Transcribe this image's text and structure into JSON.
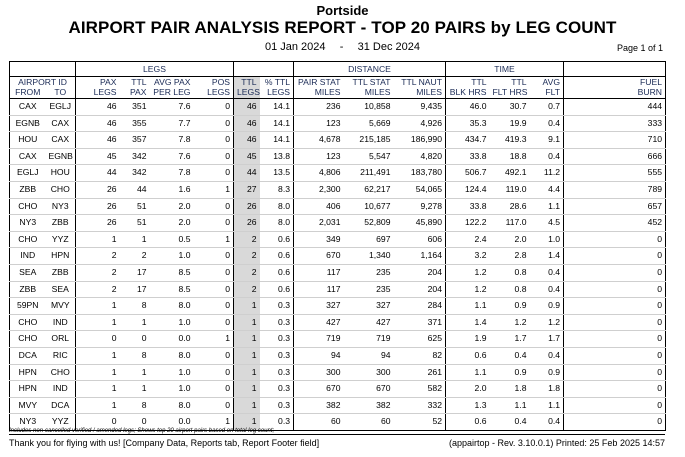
{
  "header": {
    "company": "Portside",
    "title": "AIRPORT PAIR ANALYSIS REPORT - TOP 20 PAIRS by LEG COUNT",
    "date_from": "01 Jan 2024",
    "date_sep": "-",
    "date_to": "31 Dec 2024",
    "page": "Page 1 of 1"
  },
  "groups": {
    "legs": "LEGS",
    "distance": "DISTANCE",
    "time": "TIME"
  },
  "columns": {
    "airport_id": "AIRPORT ID",
    "from": "FROM",
    "to": "TO",
    "pax_legs": [
      "PAX",
      "LEGS"
    ],
    "ttl_pax": [
      "TTL",
      "PAX"
    ],
    "avg_pax": [
      "AVG PAX",
      "PER LEG"
    ],
    "pos_legs": [
      "POS",
      "LEGS"
    ],
    "ttl_legs": [
      "TTL",
      "LEGS"
    ],
    "pct_ttl": [
      "% TTL",
      "LEGS"
    ],
    "pair_stat": [
      "PAIR STAT",
      "MILES"
    ],
    "ttl_stat": [
      "TTL STAT",
      "MILES"
    ],
    "ttl_naut": [
      "TTL NAUT",
      "MILES"
    ],
    "blk_hrs": [
      "TTL",
      "BLK HRS"
    ],
    "flt_hrs": [
      "TTL",
      "FLT HRS"
    ],
    "avg_flt": [
      "AVG",
      "FLT"
    ],
    "fuel_burn": [
      "FUEL",
      "BURN"
    ]
  },
  "rows": [
    {
      "from": "CAX",
      "to": "EGLJ",
      "pax_legs": "46",
      "ttl_pax": "351",
      "avg_pax": "7.6",
      "pos_legs": "0",
      "ttl_legs": "46",
      "pct": "14.1",
      "pair_stat": "236",
      "ttl_stat": "10,858",
      "ttl_naut": "9,435",
      "blk": "46.0",
      "flt": "30.7",
      "avg_flt": "0.7",
      "fuel": "444"
    },
    {
      "from": "EGNB",
      "to": "CAX",
      "pax_legs": "46",
      "ttl_pax": "355",
      "avg_pax": "7.7",
      "pos_legs": "0",
      "ttl_legs": "46",
      "pct": "14.1",
      "pair_stat": "123",
      "ttl_stat": "5,669",
      "ttl_naut": "4,926",
      "blk": "35.3",
      "flt": "19.9",
      "avg_flt": "0.4",
      "fuel": "333"
    },
    {
      "from": "HOU",
      "to": "CAX",
      "pax_legs": "46",
      "ttl_pax": "357",
      "avg_pax": "7.8",
      "pos_legs": "0",
      "ttl_legs": "46",
      "pct": "14.1",
      "pair_stat": "4,678",
      "ttl_stat": "215,185",
      "ttl_naut": "186,990",
      "blk": "434.7",
      "flt": "419.3",
      "avg_flt": "9.1",
      "fuel": "710"
    },
    {
      "from": "CAX",
      "to": "EGNB",
      "pax_legs": "45",
      "ttl_pax": "342",
      "avg_pax": "7.6",
      "pos_legs": "0",
      "ttl_legs": "45",
      "pct": "13.8",
      "pair_stat": "123",
      "ttl_stat": "5,547",
      "ttl_naut": "4,820",
      "blk": "33.8",
      "flt": "18.8",
      "avg_flt": "0.4",
      "fuel": "666"
    },
    {
      "from": "EGLJ",
      "to": "HOU",
      "pax_legs": "44",
      "ttl_pax": "342",
      "avg_pax": "7.8",
      "pos_legs": "0",
      "ttl_legs": "44",
      "pct": "13.5",
      "pair_stat": "4,806",
      "ttl_stat": "211,491",
      "ttl_naut": "183,780",
      "blk": "506.7",
      "flt": "492.1",
      "avg_flt": "11.2",
      "fuel": "555"
    },
    {
      "from": "ZBB",
      "to": "CHO",
      "pax_legs": "26",
      "ttl_pax": "44",
      "avg_pax": "1.6",
      "pos_legs": "1",
      "ttl_legs": "27",
      "pct": "8.3",
      "pair_stat": "2,300",
      "ttl_stat": "62,217",
      "ttl_naut": "54,065",
      "blk": "124.4",
      "flt": "119.0",
      "avg_flt": "4.4",
      "fuel": "789"
    },
    {
      "from": "CHO",
      "to": "NY3",
      "pax_legs": "26",
      "ttl_pax": "51",
      "avg_pax": "2.0",
      "pos_legs": "0",
      "ttl_legs": "26",
      "pct": "8.0",
      "pair_stat": "406",
      "ttl_stat": "10,677",
      "ttl_naut": "9,278",
      "blk": "33.8",
      "flt": "28.6",
      "avg_flt": "1.1",
      "fuel": "657"
    },
    {
      "from": "NY3",
      "to": "ZBB",
      "pax_legs": "26",
      "ttl_pax": "51",
      "avg_pax": "2.0",
      "pos_legs": "0",
      "ttl_legs": "26",
      "pct": "8.0",
      "pair_stat": "2,031",
      "ttl_stat": "52,809",
      "ttl_naut": "45,890",
      "blk": "122.2",
      "flt": "117.0",
      "avg_flt": "4.5",
      "fuel": "452"
    },
    {
      "from": "CHO",
      "to": "YYZ",
      "pax_legs": "1",
      "ttl_pax": "1",
      "avg_pax": "0.5",
      "pos_legs": "1",
      "ttl_legs": "2",
      "pct": "0.6",
      "pair_stat": "349",
      "ttl_stat": "697",
      "ttl_naut": "606",
      "blk": "2.4",
      "flt": "2.0",
      "avg_flt": "1.0",
      "fuel": "0"
    },
    {
      "from": "IND",
      "to": "HPN",
      "pax_legs": "2",
      "ttl_pax": "2",
      "avg_pax": "1.0",
      "pos_legs": "0",
      "ttl_legs": "2",
      "pct": "0.6",
      "pair_stat": "670",
      "ttl_stat": "1,340",
      "ttl_naut": "1,164",
      "blk": "3.2",
      "flt": "2.8",
      "avg_flt": "1.4",
      "fuel": "0"
    },
    {
      "from": "SEA",
      "to": "ZBB",
      "pax_legs": "2",
      "ttl_pax": "17",
      "avg_pax": "8.5",
      "pos_legs": "0",
      "ttl_legs": "2",
      "pct": "0.6",
      "pair_stat": "117",
      "ttl_stat": "235",
      "ttl_naut": "204",
      "blk": "1.2",
      "flt": "0.8",
      "avg_flt": "0.4",
      "fuel": "0"
    },
    {
      "from": "ZBB",
      "to": "SEA",
      "pax_legs": "2",
      "ttl_pax": "17",
      "avg_pax": "8.5",
      "pos_legs": "0",
      "ttl_legs": "2",
      "pct": "0.6",
      "pair_stat": "117",
      "ttl_stat": "235",
      "ttl_naut": "204",
      "blk": "1.2",
      "flt": "0.8",
      "avg_flt": "0.4",
      "fuel": "0"
    },
    {
      "from": "59PN",
      "to": "MVY",
      "pax_legs": "1",
      "ttl_pax": "8",
      "avg_pax": "8.0",
      "pos_legs": "0",
      "ttl_legs": "1",
      "pct": "0.3",
      "pair_stat": "327",
      "ttl_stat": "327",
      "ttl_naut": "284",
      "blk": "1.1",
      "flt": "0.9",
      "avg_flt": "0.9",
      "fuel": "0"
    },
    {
      "from": "CHO",
      "to": "IND",
      "pax_legs": "1",
      "ttl_pax": "1",
      "avg_pax": "1.0",
      "pos_legs": "0",
      "ttl_legs": "1",
      "pct": "0.3",
      "pair_stat": "427",
      "ttl_stat": "427",
      "ttl_naut": "371",
      "blk": "1.4",
      "flt": "1.2",
      "avg_flt": "1.2",
      "fuel": "0"
    },
    {
      "from": "CHO",
      "to": "ORL",
      "pax_legs": "0",
      "ttl_pax": "0",
      "avg_pax": "0.0",
      "pos_legs": "1",
      "ttl_legs": "1",
      "pct": "0.3",
      "pair_stat": "719",
      "ttl_stat": "719",
      "ttl_naut": "625",
      "blk": "1.9",
      "flt": "1.7",
      "avg_flt": "1.7",
      "fuel": "0"
    },
    {
      "from": "DCA",
      "to": "RIC",
      "pax_legs": "1",
      "ttl_pax": "8",
      "avg_pax": "8.0",
      "pos_legs": "0",
      "ttl_legs": "1",
      "pct": "0.3",
      "pair_stat": "94",
      "ttl_stat": "94",
      "ttl_naut": "82",
      "blk": "0.6",
      "flt": "0.4",
      "avg_flt": "0.4",
      "fuel": "0"
    },
    {
      "from": "HPN",
      "to": "CHO",
      "pax_legs": "1",
      "ttl_pax": "1",
      "avg_pax": "1.0",
      "pos_legs": "0",
      "ttl_legs": "1",
      "pct": "0.3",
      "pair_stat": "300",
      "ttl_stat": "300",
      "ttl_naut": "261",
      "blk": "1.1",
      "flt": "0.9",
      "avg_flt": "0.9",
      "fuel": "0"
    },
    {
      "from": "HPN",
      "to": "IND",
      "pax_legs": "1",
      "ttl_pax": "1",
      "avg_pax": "1.0",
      "pos_legs": "0",
      "ttl_legs": "1",
      "pct": "0.3",
      "pair_stat": "670",
      "ttl_stat": "670",
      "ttl_naut": "582",
      "blk": "2.0",
      "flt": "1.8",
      "avg_flt": "1.8",
      "fuel": "0"
    },
    {
      "from": "MVY",
      "to": "DCA",
      "pax_legs": "1",
      "ttl_pax": "8",
      "avg_pax": "8.0",
      "pos_legs": "0",
      "ttl_legs": "1",
      "pct": "0.3",
      "pair_stat": "382",
      "ttl_stat": "382",
      "ttl_naut": "332",
      "blk": "1.3",
      "flt": "1.1",
      "avg_flt": "1.1",
      "fuel": "0"
    },
    {
      "from": "NY3",
      "to": "YYZ",
      "pax_legs": "0",
      "ttl_pax": "0",
      "avg_pax": "0.0",
      "pos_legs": "1",
      "ttl_legs": "1",
      "pct": "0.3",
      "pair_stat": "60",
      "ttl_stat": "60",
      "ttl_naut": "52",
      "blk": "0.6",
      "flt": "0.4",
      "avg_flt": "0.4",
      "fuel": "0"
    }
  ],
  "footnote": "Includes non-cancelled verified / amended legs;  Shows top 20 airport pairs based on total leg count;",
  "footer": {
    "left": "Thank you for flying with us! [Company Data, Reports tab, Report Footer field]",
    "right": "(appairtop -  Rev. 3.10.0.1) Printed: 25 Feb 2025 14:57"
  }
}
